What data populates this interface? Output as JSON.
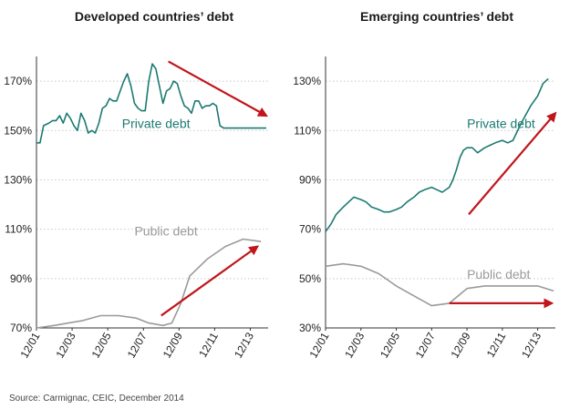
{
  "chart_data": [
    {
      "type": "line",
      "title": "Developed countries’ debt",
      "ylim": [
        70,
        180
      ],
      "yticks": [
        70,
        90,
        110,
        130,
        150,
        170
      ],
      "ytick_labels": [
        "70%",
        "90%",
        "110%",
        "130%",
        "150%",
        "170%"
      ],
      "xlim": [
        2001.0,
        2014.0
      ],
      "xtick_values": [
        2001,
        2003,
        2005,
        2007,
        2009,
        2011,
        2013
      ],
      "xtick_labels": [
        "12/01",
        "12/03",
        "12/05",
        "12/07",
        "12/09",
        "12/11",
        "12/13"
      ],
      "series": [
        {
          "name": "Private debt",
          "color": "#1a7a72",
          "label_x": 2005.8,
          "label_y": 151,
          "x": [
            2001.0,
            2001.2,
            2001.4,
            2001.7,
            2001.9,
            2002.1,
            2002.3,
            2002.5,
            2002.7,
            2002.9,
            2003.1,
            2003.3,
            2003.5,
            2003.7,
            2003.9,
            2004.1,
            2004.3,
            2004.5,
            2004.7,
            2004.9,
            2005.1,
            2005.3,
            2005.5,
            2005.7,
            2005.9,
            2006.1,
            2006.3,
            2006.5,
            2006.7,
            2006.9,
            2007.1,
            2007.3,
            2007.5,
            2007.7,
            2007.9,
            2008.1,
            2008.3,
            2008.5,
            2008.7,
            2008.9,
            2009.1,
            2009.3,
            2009.5,
            2009.7,
            2009.9,
            2010.1,
            2010.3,
            2010.5,
            2010.7,
            2010.9,
            2011.1,
            2011.3,
            2011.5,
            2011.7,
            2011.9,
            2012.1,
            2012.3,
            2012.5,
            2012.7,
            2012.9,
            2013.1,
            2013.3,
            2013.5,
            2013.7,
            2013.9
          ],
          "values": [
            145,
            145,
            152,
            153,
            154,
            154,
            156,
            153,
            157,
            155,
            152,
            150,
            157,
            154,
            149,
            150,
            149,
            153,
            159,
            160,
            163,
            162,
            162,
            166,
            170,
            173,
            168,
            161,
            159,
            158,
            158,
            170,
            177,
            175,
            168,
            161,
            166,
            167,
            170,
            169,
            164,
            160,
            159,
            157,
            162,
            162,
            159,
            160,
            160,
            161,
            160,
            152,
            151,
            151,
            151,
            151,
            151,
            151,
            151,
            151,
            151,
            151,
            151,
            151,
            151
          ],
          "rm": "placeholder"
        },
        {
          "name": "Public debt",
          "color": "#9a9a9a",
          "label_x": 2006.5,
          "label_y": 107.5,
          "x": [
            2001.0,
            2002.0,
            2002.8,
            2003.6,
            2004.6,
            2005.6,
            2006.6,
            2007.3,
            2008.1,
            2008.6,
            2009.1,
            2009.6,
            2010.6,
            2011.6,
            2012.6,
            2013.6
          ],
          "values": [
            70,
            71,
            72,
            73,
            75,
            75,
            74,
            72,
            71,
            72,
            80,
            91,
            98,
            103,
            106,
            105
          ]
        }
      ],
      "annotations": [
        {
          "type": "arrow",
          "color": "#c0161b",
          "from": [
            2008.4,
            178
          ],
          "to": [
            2013.9,
            156
          ]
        },
        {
          "type": "arrow",
          "color": "#c0161b",
          "from": [
            2008.0,
            75
          ],
          "to": [
            2013.4,
            103
          ]
        }
      ]
    },
    {
      "type": "line",
      "title": "Emerging countries’ debt",
      "ylim": [
        30,
        140
      ],
      "yticks": [
        30,
        50,
        70,
        90,
        110,
        130
      ],
      "ytick_labels": [
        "30%",
        "50%",
        "70%",
        "90%",
        "110%",
        "130%"
      ],
      "xlim": [
        2001.0,
        2014.0
      ],
      "xtick_values": [
        2001,
        2003,
        2005,
        2007,
        2009,
        2011,
        2013
      ],
      "xtick_labels": [
        "12/01",
        "12/03",
        "12/05",
        "12/07",
        "12/09",
        "12/11",
        "12/13"
      ],
      "series": [
        {
          "name": "Private debt",
          "color": "#1a7a72",
          "label_x": 2009.0,
          "label_y": 111,
          "x": [
            2001.0,
            2001.3,
            2001.6,
            2002.0,
            2002.3,
            2002.6,
            2003.0,
            2003.3,
            2003.6,
            2004.0,
            2004.3,
            2004.6,
            2005.0,
            2005.3,
            2005.6,
            2006.0,
            2006.3,
            2006.6,
            2007.0,
            2007.3,
            2007.6,
            2008.0,
            2008.2,
            2008.4,
            2008.6,
            2008.8,
            2009.0,
            2009.3,
            2009.6,
            2010.0,
            2010.3,
            2010.6,
            2011.0,
            2011.3,
            2011.6,
            2012.0,
            2012.3,
            2012.6,
            2013.0,
            2013.3,
            2013.6
          ],
          "values": [
            69,
            72,
            76,
            79,
            81,
            83,
            82,
            81,
            79,
            78,
            77,
            77,
            78,
            79,
            81,
            83,
            85,
            86,
            87,
            86,
            85,
            87,
            90,
            94,
            99,
            102,
            103,
            103,
            101,
            103,
            104,
            105,
            106,
            105,
            106,
            112,
            116,
            120,
            124,
            129,
            131
          ],
          "rm": "placeholder"
        },
        {
          "name": "Public debt",
          "color": "#9a9a9a",
          "label_x": 2009.0,
          "label_y": 50,
          "x": [
            2001.0,
            2002.0,
            2003.0,
            2004.0,
            2005.0,
            2006.0,
            2007.0,
            2008.0,
            2009.0,
            2010.0,
            2011.0,
            2012.0,
            2013.0,
            2013.9
          ],
          "values": [
            55,
            56,
            55,
            52,
            47,
            43,
            39,
            40,
            46,
            47,
            47,
            47,
            47,
            45
          ]
        }
      ],
      "annotations": [
        {
          "type": "arrow",
          "color": "#c0161b",
          "from": [
            2009.1,
            76
          ],
          "to": [
            2014.0,
            117
          ]
        },
        {
          "type": "arrow",
          "color": "#c0161b",
          "from": [
            2008.0,
            40
          ],
          "to": [
            2013.8,
            40
          ]
        }
      ]
    }
  ],
  "source": "Source: Carmignac, CEIC, December 2014"
}
